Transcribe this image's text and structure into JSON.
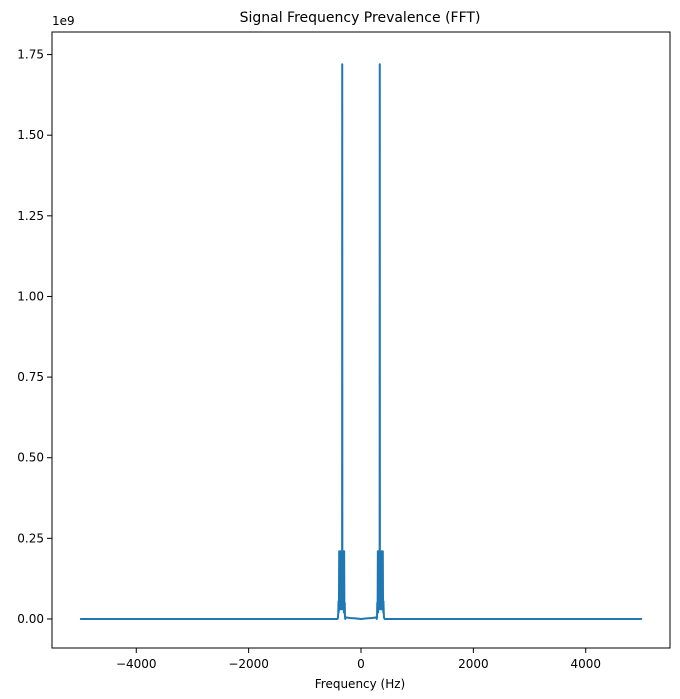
{
  "chart_data": {
    "type": "line",
    "title": "Signal Frequency Prevalence (FFT)",
    "xlabel": "Frequency (Hz)",
    "ylabel": "",
    "y_offset_label": "1e9",
    "xlim": [
      -5500,
      5500
    ],
    "ylim": [
      -0.09,
      1.82
    ],
    "x_ticks": [
      -4000,
      -2000,
      0,
      2000,
      4000
    ],
    "x_tick_labels": [
      "−4000",
      "−2000",
      "0",
      "2000",
      "4000"
    ],
    "y_ticks": [
      0.0,
      0.25,
      0.5,
      0.75,
      1.0,
      1.25,
      1.5,
      1.75
    ],
    "y_tick_labels": [
      "0.00",
      "0.25",
      "0.50",
      "0.75",
      "1.00",
      "1.25",
      "1.50",
      "1.75"
    ],
    "grid": false,
    "line_color": "#1f77b4",
    "series": [
      {
        "x": [
          -5000,
          -420,
          -410,
          -405,
          -400,
          -398,
          -395,
          -392,
          -388,
          -385,
          -380,
          -375,
          -370,
          -365,
          -362,
          -358,
          -352,
          -350,
          -348,
          -345,
          -340,
          -336,
          -334,
          -332,
          -330,
          -327,
          -324,
          -320,
          -316,
          -312,
          -308,
          -305,
          -300,
          -296,
          -292,
          -289,
          -287,
          -285,
          -280,
          -270,
          -200,
          -100,
          0,
          100,
          200,
          270,
          280,
          285,
          287,
          289,
          292,
          296,
          300,
          305,
          308,
          312,
          316,
          320,
          324,
          327,
          330,
          332,
          334,
          336,
          340,
          345,
          348,
          350,
          352,
          358,
          362,
          365,
          370,
          375,
          380,
          385,
          388,
          392,
          395,
          398,
          400,
          405,
          410,
          420,
          5000
        ],
        "y": [
          0.0,
          0.0,
          0.004,
          0.02,
          0.055,
          0.02,
          0.03,
          0.05,
          0.21,
          0.06,
          0.03,
          0.05,
          0.21,
          0.04,
          0.03,
          0.04,
          0.06,
          0.03,
          0.05,
          0.09,
          0.13,
          0.2,
          1.72,
          0.2,
          0.15,
          0.12,
          0.08,
          0.05,
          0.03,
          0.21,
          0.05,
          0.02,
          0.21,
          0.04,
          0.02,
          0.05,
          0.02,
          0.005,
          0.0,
          0.005,
          0.003,
          0.002,
          0.0,
          0.002,
          0.003,
          0.005,
          0.0,
          0.005,
          0.02,
          0.05,
          0.02,
          0.04,
          0.21,
          0.02,
          0.05,
          0.21,
          0.03,
          0.05,
          0.08,
          0.12,
          0.15,
          0.2,
          1.72,
          0.2,
          0.13,
          0.09,
          0.05,
          0.03,
          0.06,
          0.04,
          0.03,
          0.04,
          0.21,
          0.05,
          0.03,
          0.06,
          0.21,
          0.05,
          0.03,
          0.02,
          0.055,
          0.02,
          0.004,
          0.0,
          0.0
        ]
      }
    ]
  }
}
